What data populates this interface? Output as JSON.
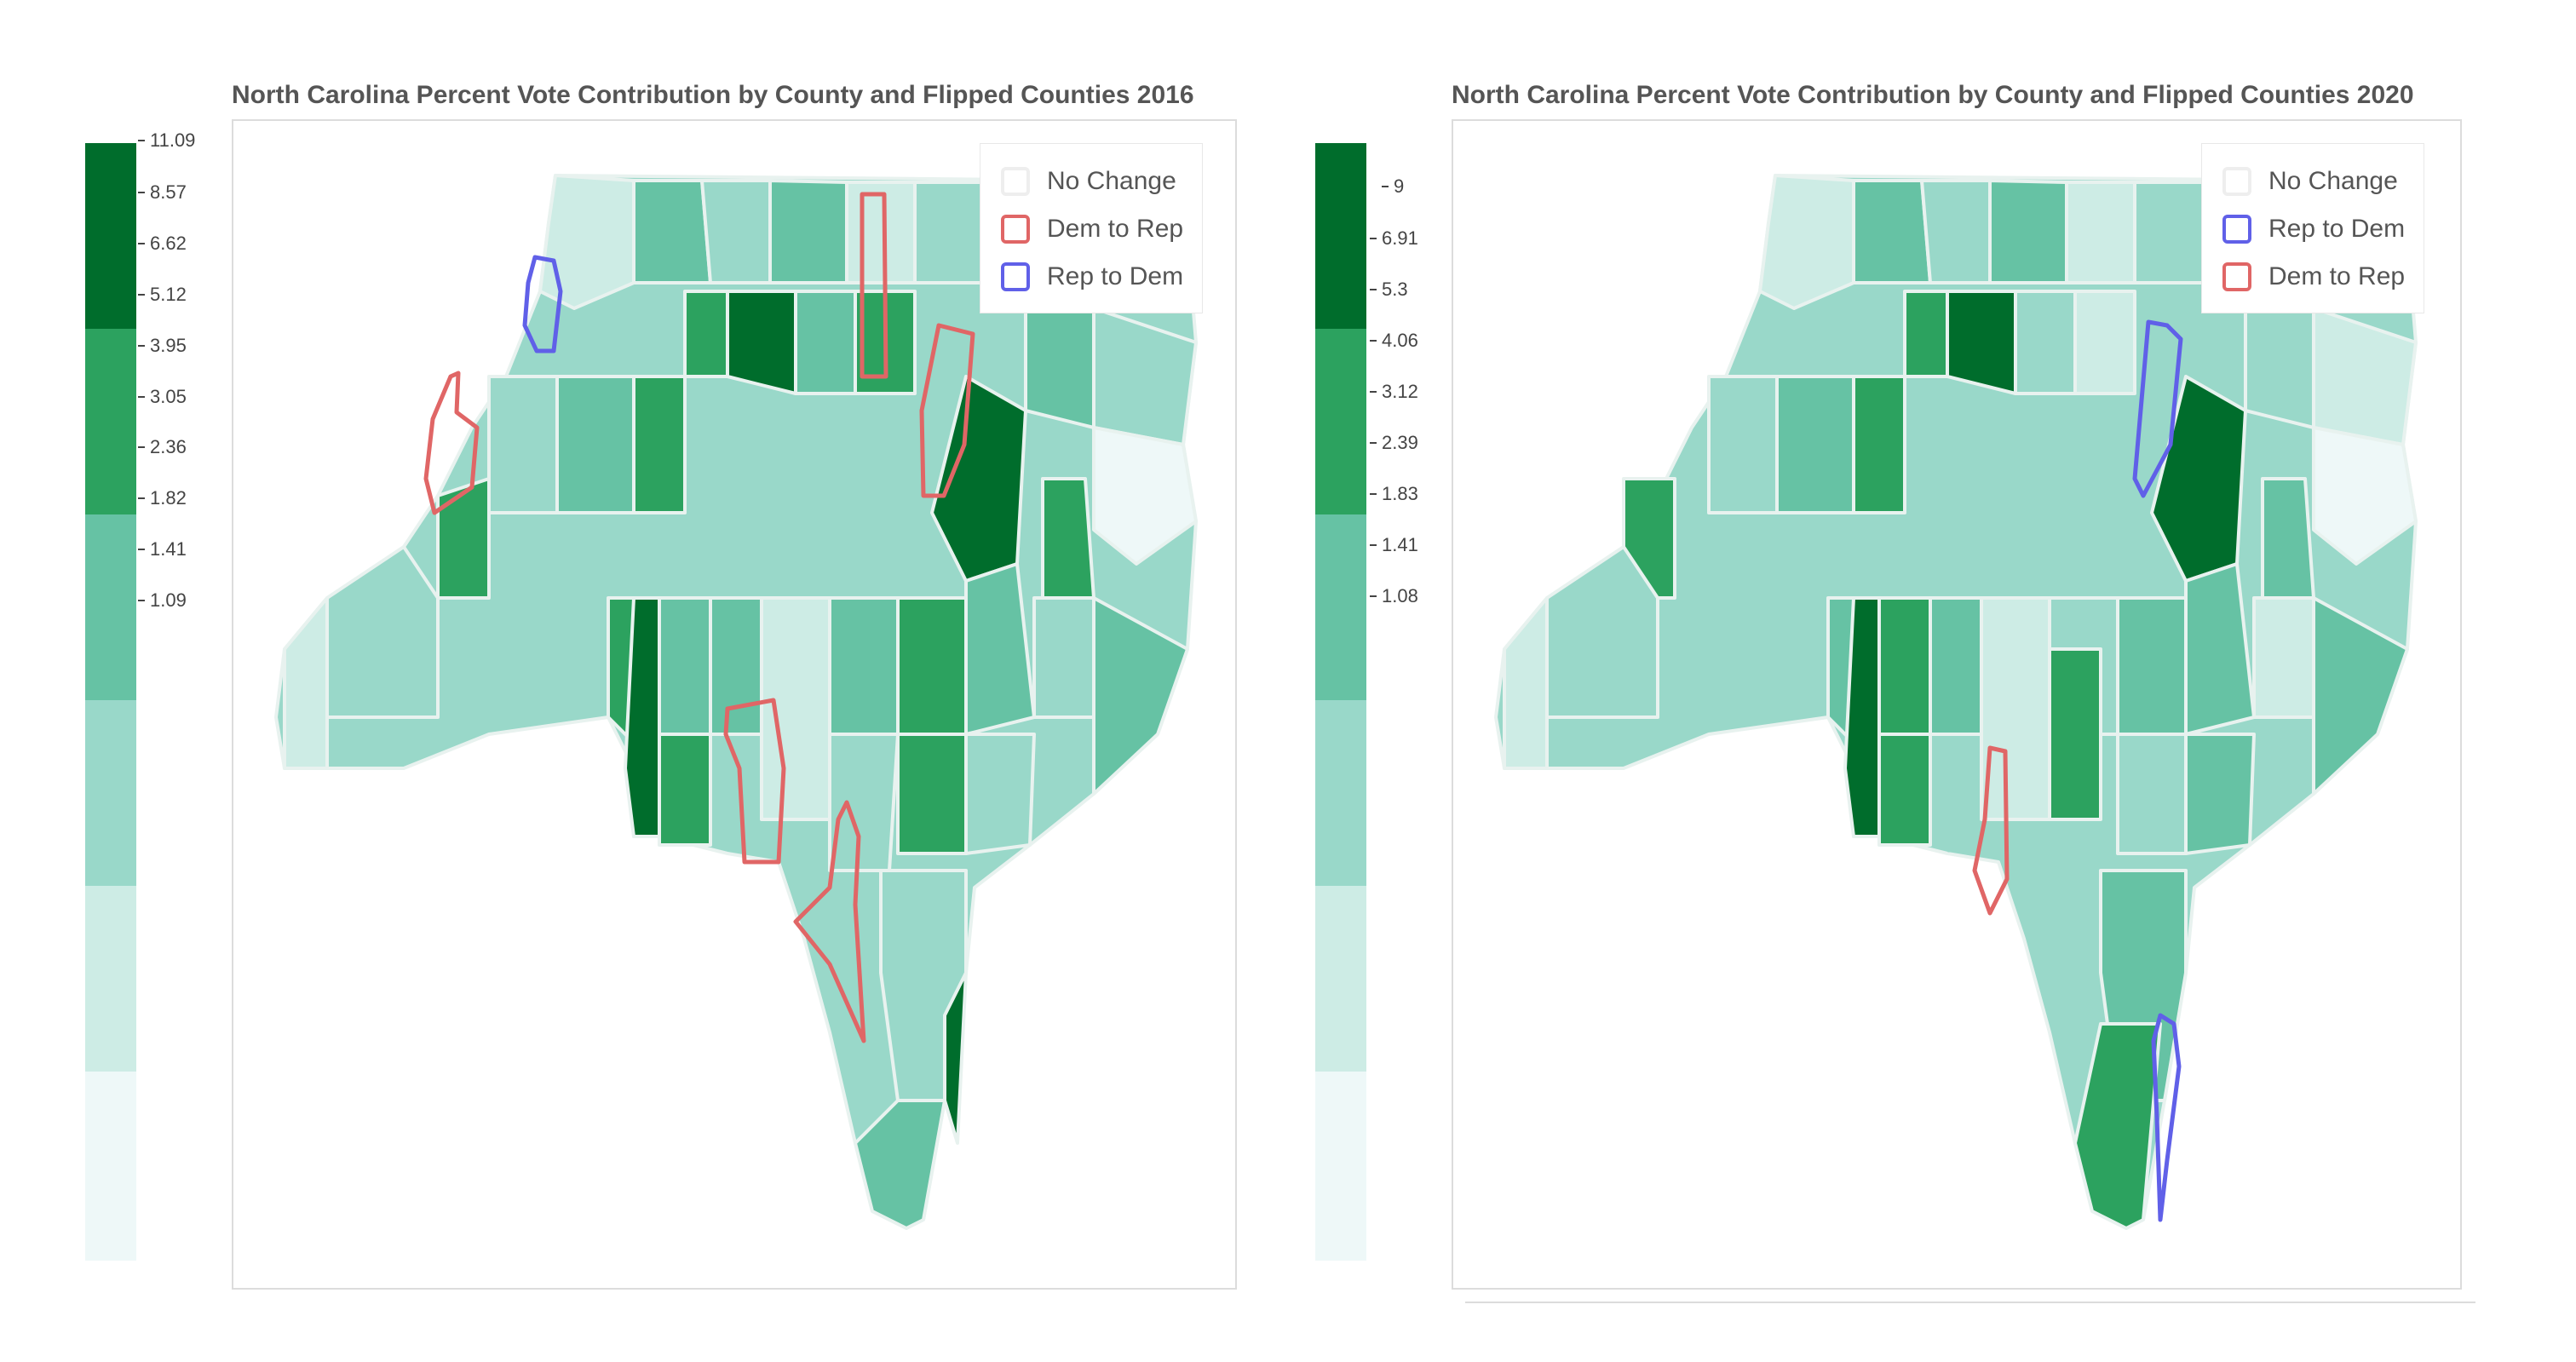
{
  "palette": [
    "#eef8f8",
    "#cdece5",
    "#99d8c9",
    "#66c2a4",
    "#2ca25f",
    "#006d2c"
  ],
  "flip_colors": {
    "dem_to_rep": "#e06666",
    "rep_to_dem": "#6060e8",
    "no_change": "#eeeeee"
  },
  "maps": [
    {
      "title": "North Carolina Percent Vote Contribution by County and Flipped Counties 2016",
      "colorbar_ticks": [
        "11.09",
        "8.57",
        "6.62",
        "5.12",
        "3.95",
        "3.05",
        "2.36",
        "1.82",
        "1.41",
        "1.09"
      ],
      "legend": [
        {
          "label": "No Change",
          "type": "no_change"
        },
        {
          "label": "Dem to Rep",
          "type": "dem_to_rep"
        },
        {
          "label": "Rep to Dem",
          "type": "rep_to_dem"
        }
      ]
    },
    {
      "title": "North Carolina Percent Vote Contribution by County and Flipped Counties 2020",
      "colorbar_ticks": [
        "9",
        "6.91",
        "5.3",
        "4.06",
        "3.12",
        "2.39",
        "1.83",
        "1.41",
        "1.08"
      ],
      "legend": [
        {
          "label": "No Change",
          "type": "no_change"
        },
        {
          "label": "Rep to Dem",
          "type": "rep_to_dem"
        },
        {
          "label": "Dem to Rep",
          "type": "dem_to_rep"
        }
      ]
    }
  ]
}
